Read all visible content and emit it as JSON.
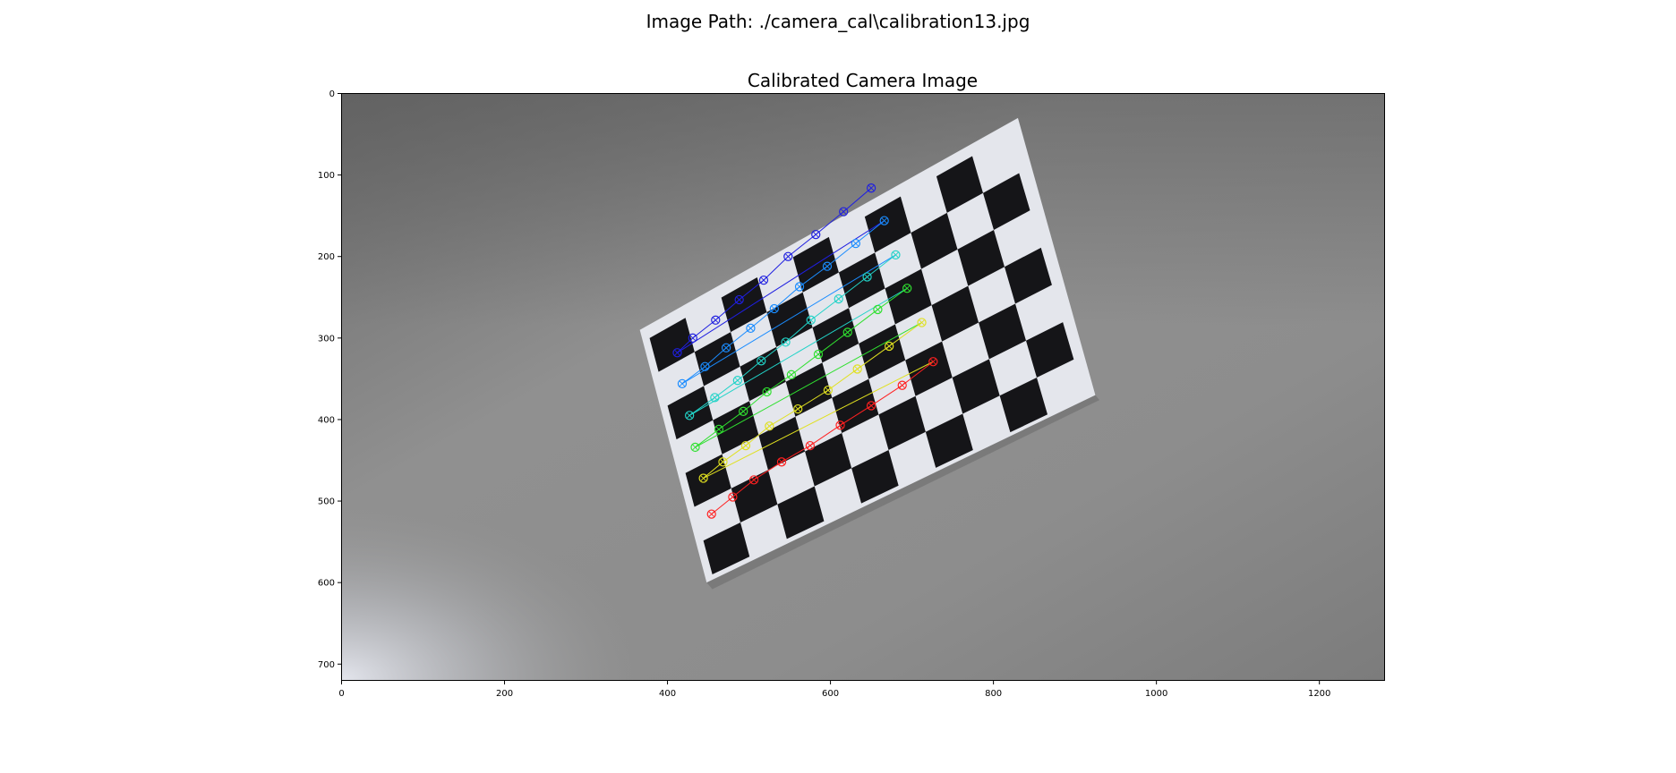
{
  "figure": {
    "suptitle": "Image Path: ./camera_cal\\calibration13.jpg",
    "axes_title": "Calibrated Camera Image"
  },
  "axes": {
    "x_ticks": [
      "0",
      "200",
      "400",
      "600",
      "800",
      "1000",
      "1200"
    ],
    "y_ticks": [
      "0",
      "100",
      "200",
      "300",
      "400",
      "500",
      "600",
      "700"
    ],
    "xlim": [
      0,
      1280
    ],
    "ylim": [
      720,
      0
    ]
  },
  "image": {
    "subject": "checkerboard calibration pattern on gray floor with detected corners drawn",
    "background_colors": {
      "dark": "#6e6e6e",
      "mid": "#8a8a8a",
      "light": "#c8cacf"
    },
    "paper_color": "#e4e6ec",
    "square_color": "#151518",
    "corner_rows": [
      {
        "color": "#1f1fe0",
        "points": [
          [
            650,
            116
          ],
          [
            616,
            145
          ],
          [
            582,
            173
          ],
          [
            548,
            200
          ],
          [
            518,
            229
          ],
          [
            488,
            253
          ],
          [
            459,
            278
          ],
          [
            431,
            300
          ],
          [
            412,
            318
          ]
        ]
      },
      {
        "color": "#1a8cff",
        "points": [
          [
            666,
            156
          ],
          [
            631,
            184
          ],
          [
            596,
            212
          ],
          [
            562,
            237
          ],
          [
            531,
            264
          ],
          [
            502,
            288
          ],
          [
            472,
            312
          ],
          [
            446,
            335
          ],
          [
            418,
            356
          ]
        ]
      },
      {
        "color": "#22d3c8",
        "points": [
          [
            680,
            198
          ],
          [
            645,
            225
          ],
          [
            610,
            252
          ],
          [
            576,
            278
          ],
          [
            545,
            305
          ],
          [
            515,
            328
          ],
          [
            486,
            352
          ],
          [
            458,
            373
          ],
          [
            427,
            395
          ]
        ]
      },
      {
        "color": "#30e030",
        "points": [
          [
            694,
            239
          ],
          [
            658,
            265
          ],
          [
            621,
            293
          ],
          [
            585,
            320
          ],
          [
            552,
            345
          ],
          [
            522,
            366
          ],
          [
            493,
            390
          ],
          [
            463,
            412
          ],
          [
            434,
            434
          ]
        ]
      },
      {
        "color": "#e0e020",
        "points": [
          [
            712,
            281
          ],
          [
            672,
            310
          ],
          [
            633,
            338
          ],
          [
            597,
            364
          ],
          [
            560,
            387
          ],
          [
            525,
            408
          ],
          [
            496,
            432
          ],
          [
            468,
            452
          ],
          [
            444,
            472
          ]
        ]
      },
      {
        "color": "#ff2020",
        "points": [
          [
            726,
            329
          ],
          [
            688,
            358
          ],
          [
            650,
            383
          ],
          [
            612,
            407
          ],
          [
            575,
            432
          ],
          [
            540,
            452
          ],
          [
            506,
            474
          ],
          [
            480,
            495
          ],
          [
            454,
            516
          ]
        ]
      }
    ]
  }
}
